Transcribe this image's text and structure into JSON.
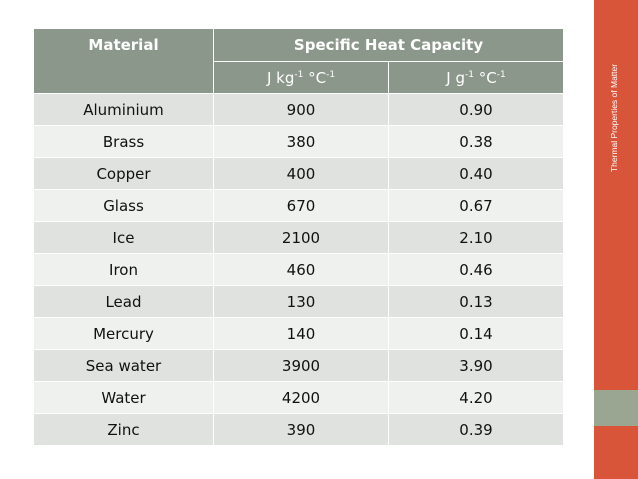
{
  "side_title": "Thermal Properties of Matter",
  "table": {
    "header": {
      "material": "Material",
      "group": "Specific Heat Capacity",
      "unit1": {
        "a": "J kg",
        "s1": "-1",
        "b": " °C",
        "s2": "-1"
      },
      "unit2": {
        "a": "J g",
        "s1": "-1",
        "b": " °C",
        "s2": "-1"
      }
    },
    "rows": [
      {
        "material": "Aluminium",
        "v1": "900",
        "v2": "0.90"
      },
      {
        "material": "Brass",
        "v1": "380",
        "v2": "0.38"
      },
      {
        "material": "Copper",
        "v1": "400",
        "v2": "0.40"
      },
      {
        "material": "Glass",
        "v1": "670",
        "v2": "0.67"
      },
      {
        "material": "Ice",
        "v1": "2100",
        "v2": "2.10"
      },
      {
        "material": "Iron",
        "v1": "460",
        "v2": "0.46"
      },
      {
        "material": "Lead",
        "v1": "130",
        "v2": "0.13"
      },
      {
        "material": "Mercury",
        "v1": "140",
        "v2": "0.14"
      },
      {
        "material": "Sea water",
        "v1": "3900",
        "v2": "3.90"
      },
      {
        "material": "Water",
        "v1": "4200",
        "v2": "4.20"
      },
      {
        "material": "Zinc",
        "v1": "390",
        "v2": "0.39"
      }
    ]
  },
  "colors": {
    "header": "#8c978b",
    "row_odd": "#dfe2de",
    "row_even": "#eff1ef",
    "sidebar": "#d8553a",
    "sidebar_block": "#9aa592"
  }
}
